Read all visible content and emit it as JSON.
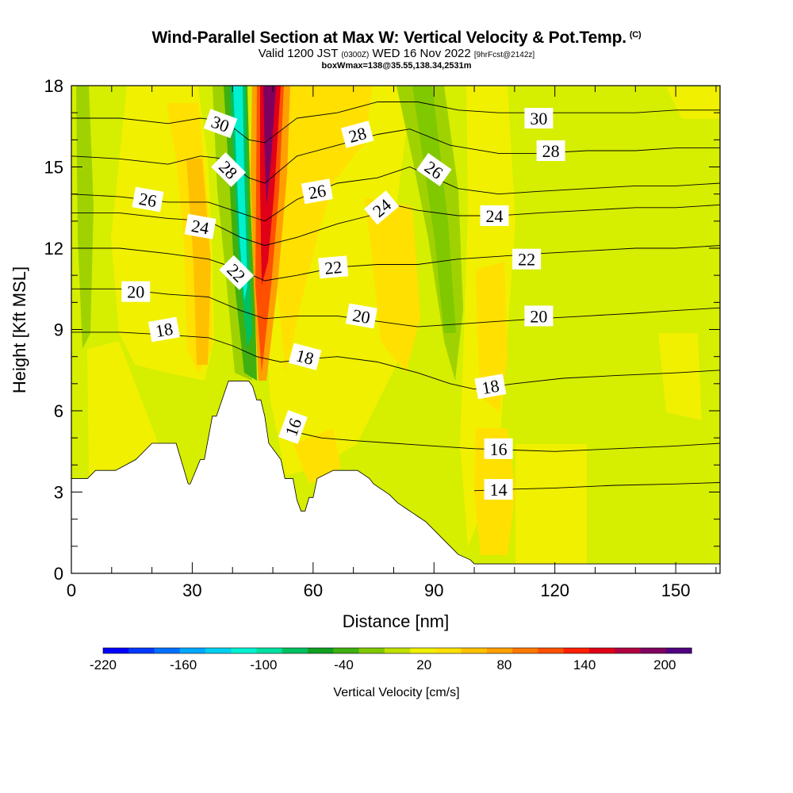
{
  "chart_data": {
    "type": "heatmap",
    "title": "Wind-Parallel Section at Max W: Vertical Velocity & Pot.Temp.",
    "title_mark": "(C)",
    "subtitle_main_a": "Valid 1200 JST",
    "subtitle_small_a": "(0300Z)",
    "subtitle_main_b": "WED 16 Nov 2022",
    "subtitle_small_b": "[9hrFcst@2142z]",
    "subtitle2": "boxWmax=138@35.55,138.34,2531m",
    "xlabel": "Distance [nm]",
    "ylabel": "Height [Kft MSL]",
    "xlim": [
      0,
      161
    ],
    "ylim": [
      0,
      18
    ],
    "x_ticks": [
      "0",
      "30",
      "60",
      "90",
      "120",
      "150"
    ],
    "x_tick_values": [
      0,
      30,
      60,
      90,
      120,
      150
    ],
    "y_ticks": [
      "0",
      "3",
      "6",
      "9",
      "12",
      "15",
      "18"
    ],
    "y_tick_values": [
      0,
      3,
      6,
      9,
      12,
      15,
      18
    ],
    "colorbar": {
      "label": "Vertical Velocity [cm/s]",
      "tick_labels": [
        "-220",
        "-160",
        "-100",
        "-40",
        "20",
        "80",
        "140",
        "200"
      ],
      "tick_values": [
        -220,
        -160,
        -100,
        -40,
        20,
        80,
        140,
        200
      ],
      "range": [
        -220,
        220
      ],
      "colors": [
        "#0000ff",
        "#0038ff",
        "#0070ff",
        "#00a8ff",
        "#00d0f0",
        "#00f0d0",
        "#00e0a0",
        "#00c060",
        "#10a020",
        "#40b010",
        "#80c800",
        "#c0e000",
        "#f0f000",
        "#ffe000",
        "#ffc000",
        "#ffa000",
        "#ff7800",
        "#ff5000",
        "#ff2000",
        "#e00018",
        "#b00040",
        "#800060",
        "#500080"
      ]
    },
    "terrain": {
      "x": [
        0,
        4,
        6,
        11,
        16,
        20,
        26,
        29,
        29.5,
        32,
        33,
        35,
        36,
        39,
        40,
        43,
        44,
        45,
        46,
        47,
        48,
        49,
        52,
        53,
        55,
        56,
        57,
        58,
        59,
        60,
        61,
        65,
        71,
        74,
        75,
        77,
        79,
        81,
        83,
        85,
        86,
        88,
        90,
        92,
        94,
        96,
        99,
        100,
        161
      ],
      "height": [
        3.5,
        3.5,
        3.8,
        3.8,
        4.2,
        4.8,
        4.8,
        3.3,
        3.3,
        4.2,
        4.2,
        5.8,
        5.8,
        7.1,
        7.1,
        7.1,
        7.1,
        6.9,
        6.4,
        6.4,
        5.8,
        4.8,
        4.2,
        3.5,
        3.5,
        2.7,
        2.3,
        2.3,
        2.8,
        2.8,
        3.5,
        3.8,
        3.8,
        3.5,
        3.3,
        3.1,
        2.9,
        2.6,
        2.4,
        2.2,
        2.1,
        1.9,
        1.6,
        1.3,
        1.0,
        0.7,
        0.5,
        0.35,
        0.35
      ]
    },
    "theta_contours": [
      {
        "label": "14",
        "x": [
          100,
          108,
          120,
          135,
          150,
          161
        ],
        "y": [
          3.05,
          3.1,
          3.15,
          3.25,
          3.3,
          3.35
        ]
      },
      {
        "label": "16",
        "x": [
          56,
          62,
          70,
          80,
          90,
          100,
          110,
          120,
          135,
          150,
          161
        ],
        "y": [
          5.2,
          5.0,
          4.9,
          4.8,
          4.7,
          4.6,
          4.55,
          4.5,
          4.6,
          4.7,
          4.8
        ]
      },
      {
        "label": "18",
        "x": [
          0,
          12,
          24,
          34,
          40,
          46,
          52,
          58,
          66,
          76,
          86,
          94,
          100,
          110,
          122,
          135,
          150,
          161
        ],
        "y": [
          8.9,
          8.9,
          8.8,
          8.7,
          8.4,
          8.0,
          7.8,
          7.9,
          8.0,
          7.8,
          7.4,
          7.0,
          6.8,
          7.0,
          7.2,
          7.3,
          7.4,
          7.5
        ]
      },
      {
        "label": "20",
        "x": [
          0,
          12,
          24,
          34,
          42,
          48,
          56,
          66,
          76,
          86,
          96,
          106,
          116,
          128,
          140,
          150,
          161
        ],
        "y": [
          10.5,
          10.5,
          10.3,
          10.2,
          9.7,
          9.4,
          9.5,
          9.5,
          9.3,
          9.1,
          9.2,
          9.3,
          9.4,
          9.5,
          9.6,
          9.7,
          9.8
        ]
      },
      {
        "label": "22",
        "x": [
          0,
          12,
          24,
          34,
          42,
          48,
          56,
          66,
          76,
          86,
          96,
          106,
          116,
          128,
          140,
          150,
          161
        ],
        "y": [
          12.0,
          12.0,
          11.8,
          11.6,
          11.2,
          10.8,
          11.0,
          11.3,
          11.4,
          11.4,
          11.6,
          11.7,
          11.8,
          11.9,
          12.0,
          12.0,
          12.1
        ]
      },
      {
        "label": "24",
        "x": [
          0,
          12,
          24,
          34,
          42,
          48,
          56,
          66,
          74,
          80,
          86,
          96,
          106,
          116,
          128,
          140,
          150,
          161
        ],
        "y": [
          13.3,
          13.3,
          13.1,
          13.0,
          12.4,
          12.1,
          12.4,
          12.9,
          13.2,
          13.6,
          13.4,
          13.2,
          13.2,
          13.3,
          13.4,
          13.5,
          13.5,
          13.6
        ]
      },
      {
        "label": "26",
        "x": [
          0,
          12,
          24,
          34,
          42,
          48,
          56,
          66,
          76,
          84,
          90,
          96,
          106,
          116,
          128,
          140,
          150,
          161
        ],
        "y": [
          14.0,
          13.9,
          13.7,
          13.7,
          13.3,
          13.0,
          13.8,
          14.4,
          14.6,
          15.0,
          14.6,
          14.2,
          14.0,
          14.1,
          14.2,
          14.3,
          14.3,
          14.4
        ]
      },
      {
        "label": "28",
        "x": [
          0,
          12,
          24,
          32,
          38,
          44,
          48,
          56,
          66,
          76,
          84,
          94,
          106,
          116,
          128,
          140,
          150,
          161
        ],
        "y": [
          15.4,
          15.3,
          15.1,
          15.4,
          15.3,
          14.6,
          14.4,
          15.4,
          15.8,
          16.2,
          16.4,
          15.8,
          15.5,
          15.5,
          15.6,
          15.6,
          15.7,
          15.7
        ]
      },
      {
        "label": "30",
        "x": [
          0,
          12,
          24,
          32,
          38,
          44,
          48,
          56,
          66,
          76,
          86,
          96,
          106,
          116,
          128,
          140,
          150,
          161
        ],
        "y": [
          16.8,
          16.8,
          16.6,
          16.8,
          16.7,
          16.0,
          15.9,
          16.8,
          17.0,
          17.4,
          17.4,
          17.1,
          17.0,
          17.0,
          17.0,
          17.0,
          17.1,
          17.1
        ]
      }
    ],
    "contour_labels": [
      {
        "text": "30",
        "x": 37,
        "y": 16.6,
        "angle": 20
      },
      {
        "text": "28",
        "x": 71,
        "y": 16.2,
        "angle": -15
      },
      {
        "text": "30",
        "x": 116,
        "y": 16.8,
        "angle": 0
      },
      {
        "text": "28",
        "x": 39,
        "y": 14.9,
        "angle": 45
      },
      {
        "text": "26",
        "x": 90,
        "y": 14.9,
        "angle": 35
      },
      {
        "text": "28",
        "x": 119,
        "y": 15.6,
        "angle": 0
      },
      {
        "text": "26",
        "x": 19,
        "y": 13.8,
        "angle": 10
      },
      {
        "text": "26",
        "x": 61,
        "y": 14.1,
        "angle": -10
      },
      {
        "text": "24",
        "x": 77,
        "y": 13.5,
        "angle": -40
      },
      {
        "text": "24",
        "x": 32,
        "y": 12.8,
        "angle": 10
      },
      {
        "text": "24",
        "x": 105,
        "y": 13.2,
        "angle": 0
      },
      {
        "text": "22",
        "x": 41,
        "y": 11.1,
        "angle": 45
      },
      {
        "text": "22",
        "x": 65,
        "y": 11.3,
        "angle": -5
      },
      {
        "text": "22",
        "x": 113,
        "y": 11.6,
        "angle": 0
      },
      {
        "text": "20",
        "x": 16,
        "y": 10.4,
        "angle": 0
      },
      {
        "text": "20",
        "x": 72,
        "y": 9.5,
        "angle": 10
      },
      {
        "text": "20",
        "x": 116,
        "y": 9.5,
        "angle": 0
      },
      {
        "text": "18",
        "x": 23,
        "y": 9.0,
        "angle": -10
      },
      {
        "text": "18",
        "x": 58,
        "y": 8.0,
        "angle": 15
      },
      {
        "text": "18",
        "x": 104,
        "y": 6.9,
        "angle": -10
      },
      {
        "text": "16",
        "x": 55,
        "y": 5.4,
        "angle": -70
      },
      {
        "text": "16",
        "x": 106,
        "y": 4.6,
        "angle": 0
      },
      {
        "text": "14",
        "x": 106,
        "y": 3.1,
        "angle": 0
      }
    ]
  }
}
